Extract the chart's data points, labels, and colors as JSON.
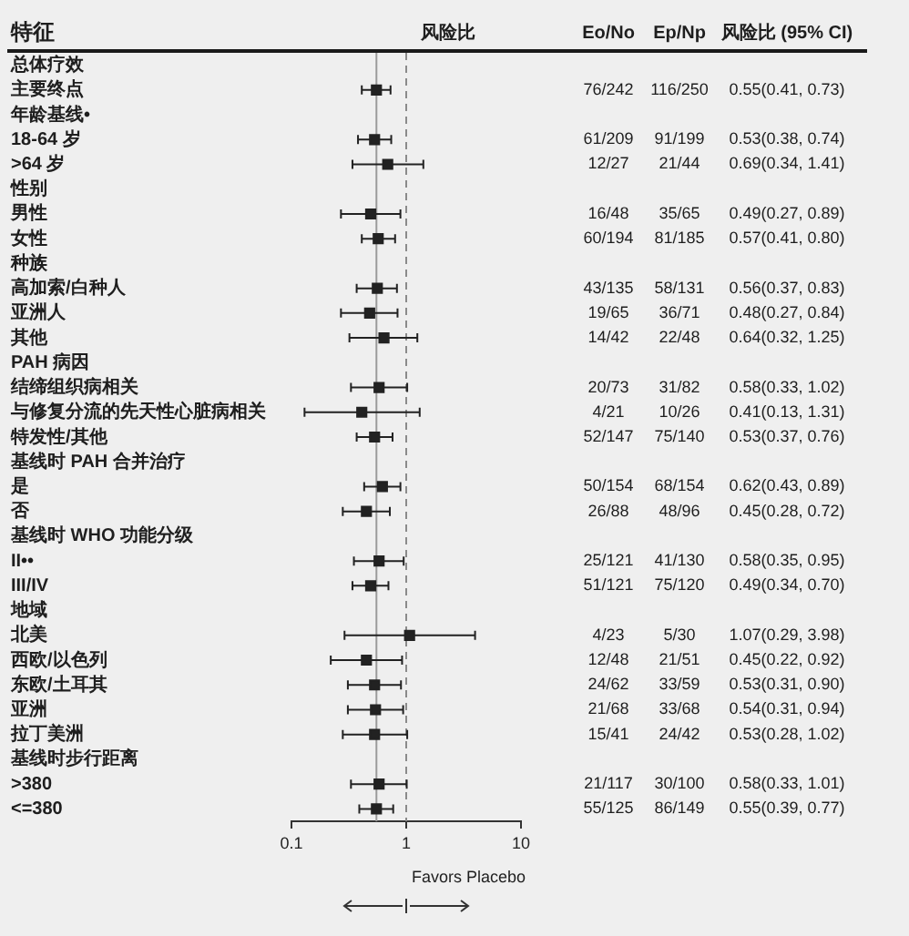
{
  "chart_data": {
    "type": "scatter",
    "orientation": "horizontal",
    "ylabel": "特征",
    "xlabel": "风险比",
    "categories": [
      "总体疗效",
      "主要终点",
      "年龄基线•",
      "18-64 岁",
      ">64 岁",
      "性别",
      "男性",
      "女性",
      "种族",
      "高加索/白种人",
      "亚洲人",
      "其他",
      "PAH 病因",
      "结缔组织病相关",
      "与修复分流的先天性心脏病相关",
      "特发性/其他",
      "基线时 PAH 合并治疗",
      "是",
      "否",
      "基线时 WHO 功能分级",
      "II••",
      "III/IV",
      "地域",
      "北美",
      "西欧/以色列",
      "东欧/土耳其",
      "亚洲",
      "拉丁美洲",
      "基线时步行距离",
      ">380",
      "<=380"
    ],
    "values": [
      null,
      0.55,
      null,
      0.53,
      0.69,
      null,
      0.49,
      0.57,
      null,
      0.56,
      0.48,
      0.64,
      null,
      0.58,
      0.41,
      0.53,
      null,
      0.62,
      0.45,
      null,
      0.58,
      0.49,
      null,
      1.07,
      0.45,
      0.53,
      0.54,
      0.53,
      null,
      0.58,
      0.55
    ],
    "errors": [
      null,
      [
        0.41,
        0.73
      ],
      null,
      [
        0.38,
        0.74
      ],
      [
        0.34,
        1.41
      ],
      null,
      [
        0.27,
        0.89
      ],
      [
        0.41,
        0.8
      ],
      null,
      [
        0.37,
        0.83
      ],
      [
        0.27,
        0.84
      ],
      [
        0.32,
        1.25
      ],
      null,
      [
        0.33,
        1.02
      ],
      [
        0.13,
        1.31
      ],
      [
        0.37,
        0.76
      ],
      null,
      [
        0.43,
        0.89
      ],
      [
        0.28,
        0.72
      ],
      null,
      [
        0.35,
        0.95
      ],
      [
        0.34,
        0.7
      ],
      null,
      [
        0.29,
        3.98
      ],
      [
        0.22,
        0.92
      ],
      [
        0.31,
        0.9
      ],
      [
        0.31,
        0.94
      ],
      [
        0.28,
        1.02
      ],
      null,
      [
        0.33,
        1.01
      ],
      [
        0.39,
        0.77
      ]
    ],
    "value_labels": [
      null,
      "0.55(0.41, 0.73)",
      null,
      "0.53(0.38, 0.74)",
      "0.69(0.34, 1.41)",
      null,
      "0.49(0.27, 0.89)",
      "0.57(0.41, 0.80)",
      null,
      "0.56(0.37, 0.83)",
      "0.48(0.27, 0.84)",
      "0.64(0.32, 1.25)",
      null,
      "0.58(0.33, 1.02)",
      "0.41(0.13, 1.31)",
      "0.53(0.37, 0.76)",
      null,
      "0.62(0.43, 0.89)",
      "0.45(0.28, 0.72)",
      null,
      "0.58(0.35, 0.95)",
      "0.49(0.34, 0.70)",
      null,
      "1.07(0.29, 3.98)",
      "0.45(0.22, 0.92)",
      "0.53(0.31, 0.90)",
      "0.54(0.31, 0.94)",
      "0.53(0.28, 1.02)",
      null,
      "0.58(0.33, 1.01)",
      "0.55(0.39, 0.77)"
    ],
    "color": "#222222",
    "marker": "square",
    "log": "x",
    "xlim": [
      0.1,
      10
    ],
    "xticks": [
      0.1,
      1,
      10
    ],
    "ref_lines": [
      {
        "axis": "x",
        "value": 0.55,
        "color": "#9a9a9a",
        "line_style": "solid"
      },
      {
        "axis": "x",
        "value": 1,
        "color": "#8a8a8a",
        "line_style": "dashed"
      }
    ],
    "annotations": [
      "Eo/No",
      "Ep/Np",
      "风险比 (95% CI)",
      "Favors Placebo",
      "76/242",
      "116/250",
      "61/209",
      "91/199",
      "12/27",
      "21/44",
      "16/48",
      "35/65",
      "60/194",
      "81/185",
      "43/135",
      "58/131",
      "19/65",
      "36/71",
      "14/42",
      "22/48",
      "20/73",
      "31/82",
      "4/21",
      "10/26",
      "52/147",
      "75/140",
      "50/154",
      "68/154",
      "26/88",
      "48/96",
      "25/121",
      "41/130",
      "51/121",
      "75/120",
      "4/23",
      "5/30",
      "12/48",
      "21/51",
      "24/62",
      "33/59",
      "21/68",
      "33/68",
      "15/41",
      "24/42",
      "21/117",
      "30/100",
      "55/125",
      "86/149"
    ]
  }
}
